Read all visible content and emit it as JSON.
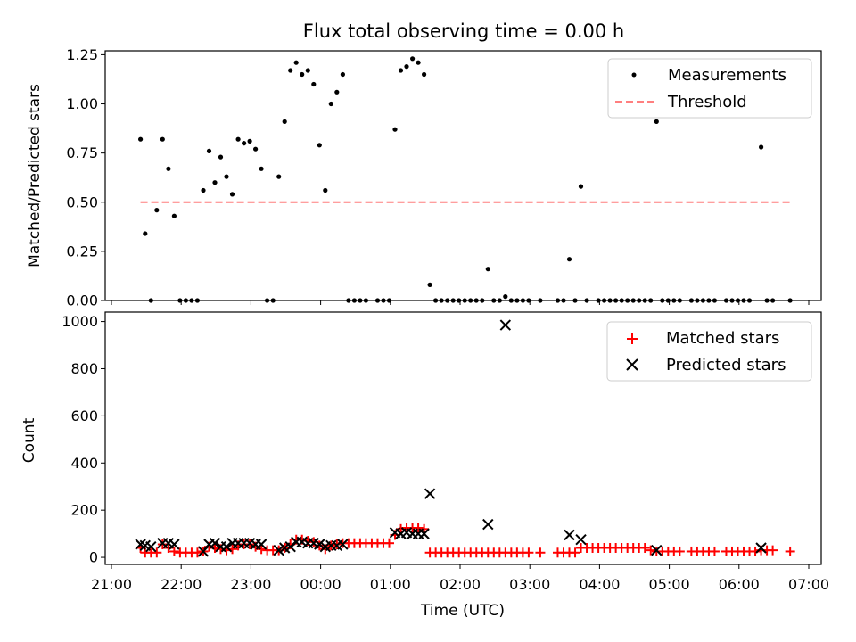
{
  "chart_data": [
    {
      "type": "scatter",
      "title": "Flux total observing time = 0.00 h",
      "xlabel": "",
      "ylabel": "Matched/Predicted stars",
      "xlim": [
        "2023-01-01T21:00",
        "2023-01-02T07:00"
      ],
      "ylim": [
        0,
        1.27
      ],
      "yticks": [
        "0.00",
        "0.25",
        "0.50",
        "0.75",
        "1.00",
        "1.25"
      ],
      "legend_position": "top-right",
      "series": [
        {
          "name": "Measurements",
          "marker": "dot",
          "color": "#000000",
          "points": [
            [
              "21:25",
              0.82
            ],
            [
              "21:29",
              0.34
            ],
            [
              "21:34",
              0.0
            ],
            [
              "21:39",
              0.46
            ],
            [
              "21:44",
              0.82
            ],
            [
              "21:49",
              0.67
            ],
            [
              "21:54",
              0.43
            ],
            [
              "21:59",
              0.0
            ],
            [
              "22:04",
              0.0
            ],
            [
              "22:09",
              0.0
            ],
            [
              "22:14",
              0.0
            ],
            [
              "22:19",
              0.56
            ],
            [
              "22:24",
              0.76
            ],
            [
              "22:29",
              0.6
            ],
            [
              "22:34",
              0.73
            ],
            [
              "22:39",
              0.63
            ],
            [
              "22:44",
              0.54
            ],
            [
              "22:49",
              0.82
            ],
            [
              "22:54",
              0.8
            ],
            [
              "22:59",
              0.81
            ],
            [
              "23:04",
              0.77
            ],
            [
              "23:09",
              0.67
            ],
            [
              "23:14",
              0.0
            ],
            [
              "23:19",
              0.0
            ],
            [
              "23:24",
              0.63
            ],
            [
              "23:29",
              0.91
            ],
            [
              "23:34",
              1.17
            ],
            [
              "23:39",
              1.21
            ],
            [
              "23:44",
              1.15
            ],
            [
              "23:49",
              1.17
            ],
            [
              "23:54",
              1.1
            ],
            [
              "23:59",
              0.79
            ],
            [
              "00:04",
              0.56
            ],
            [
              "00:09",
              1.0
            ],
            [
              "00:14",
              1.06
            ],
            [
              "00:19",
              1.15
            ],
            [
              "00:24",
              0.0
            ],
            [
              "00:29",
              0.0
            ],
            [
              "00:34",
              0.0
            ],
            [
              "00:39",
              0.0
            ],
            [
              "00:49",
              0.0
            ],
            [
              "00:54",
              0.0
            ],
            [
              "00:59",
              0.0
            ],
            [
              "01:04",
              0.87
            ],
            [
              "01:09",
              1.17
            ],
            [
              "01:14",
              1.19
            ],
            [
              "01:19",
              1.23
            ],
            [
              "01:24",
              1.21
            ],
            [
              "01:29",
              1.15
            ],
            [
              "01:34",
              0.08
            ],
            [
              "01:39",
              0.0
            ],
            [
              "01:44",
              0.0
            ],
            [
              "01:49",
              0.0
            ],
            [
              "01:54",
              0.0
            ],
            [
              "01:59",
              0.0
            ],
            [
              "02:04",
              0.0
            ],
            [
              "02:09",
              0.0
            ],
            [
              "02:14",
              0.0
            ],
            [
              "02:19",
              0.0
            ],
            [
              "02:24",
              0.16
            ],
            [
              "02:29",
              0.0
            ],
            [
              "02:34",
              0.0
            ],
            [
              "02:39",
              0.02
            ],
            [
              "02:44",
              0.0
            ],
            [
              "02:49",
              0.0
            ],
            [
              "02:54",
              0.0
            ],
            [
              "02:59",
              0.0
            ],
            [
              "03:09",
              0.0
            ],
            [
              "03:24",
              0.0
            ],
            [
              "03:29",
              0.0
            ],
            [
              "03:34",
              0.21
            ],
            [
              "03:39",
              0.0
            ],
            [
              "03:44",
              0.58
            ],
            [
              "03:49",
              0.0
            ],
            [
              "03:59",
              0.0
            ],
            [
              "04:04",
              0.0
            ],
            [
              "04:09",
              0.0
            ],
            [
              "04:14",
              0.0
            ],
            [
              "04:19",
              0.0
            ],
            [
              "04:24",
              0.0
            ],
            [
              "04:29",
              0.0
            ],
            [
              "04:34",
              0.0
            ],
            [
              "04:39",
              0.0
            ],
            [
              "04:44",
              0.0
            ],
            [
              "04:49",
              0.91
            ],
            [
              "04:54",
              0.0
            ],
            [
              "04:59",
              0.0
            ],
            [
              "05:04",
              0.0
            ],
            [
              "05:09",
              0.0
            ],
            [
              "05:19",
              0.0
            ],
            [
              "05:24",
              0.0
            ],
            [
              "05:29",
              0.0
            ],
            [
              "05:34",
              0.0
            ],
            [
              "05:39",
              0.0
            ],
            [
              "05:49",
              0.0
            ],
            [
              "05:54",
              0.0
            ],
            [
              "05:59",
              0.0
            ],
            [
              "06:04",
              0.0
            ],
            [
              "06:09",
              0.0
            ],
            [
              "06:19",
              0.78
            ],
            [
              "06:24",
              0.0
            ],
            [
              "06:29",
              0.0
            ],
            [
              "06:44",
              0.0
            ]
          ]
        },
        {
          "name": "Threshold",
          "marker": "dashed-line",
          "color": "#ff7f7f",
          "points": [
            [
              "21:25",
              0.5
            ],
            [
              "06:44",
              0.5
            ]
          ]
        }
      ]
    },
    {
      "type": "scatter",
      "title": "",
      "xlabel": "Time (UTC)",
      "ylabel": "Count",
      "xlim": [
        "2023-01-01T21:00",
        "2023-01-02T07:00"
      ],
      "ylim": [
        -30,
        1040
      ],
      "xticks": [
        "21:00",
        "22:00",
        "23:00",
        "00:00",
        "01:00",
        "02:00",
        "03:00",
        "04:00",
        "05:00",
        "06:00",
        "07:00"
      ],
      "yticks": [
        "0",
        "200",
        "400",
        "600",
        "800",
        "1000"
      ],
      "legend_position": "top-right",
      "series": [
        {
          "name": "Matched stars",
          "marker": "plus",
          "color": "#ff0000",
          "points": [
            [
              "21:25",
              40
            ],
            [
              "21:29",
              20
            ],
            [
              "21:34",
              20
            ],
            [
              "21:39",
              20
            ],
            [
              "21:44",
              55
            ],
            [
              "21:49",
              40
            ],
            [
              "21:54",
              25
            ],
            [
              "21:59",
              20
            ],
            [
              "22:04",
              20
            ],
            [
              "22:09",
              20
            ],
            [
              "22:14",
              20
            ],
            [
              "22:19",
              25
            ],
            [
              "22:24",
              45
            ],
            [
              "22:29",
              40
            ],
            [
              "22:34",
              35
            ],
            [
              "22:39",
              30
            ],
            [
              "22:44",
              35
            ],
            [
              "22:49",
              50
            ],
            [
              "22:54",
              55
            ],
            [
              "22:59",
              55
            ],
            [
              "23:04",
              45
            ],
            [
              "23:09",
              35
            ],
            [
              "23:14",
              30
            ],
            [
              "23:19",
              30
            ],
            [
              "23:24",
              30
            ],
            [
              "23:29",
              40
            ],
            [
              "23:34",
              55
            ],
            [
              "23:39",
              75
            ],
            [
              "23:44",
              75
            ],
            [
              "23:49",
              70
            ],
            [
              "23:54",
              65
            ],
            [
              "23:59",
              50
            ],
            [
              "00:04",
              35
            ],
            [
              "00:09",
              50
            ],
            [
              "00:14",
              55
            ],
            [
              "00:19",
              60
            ],
            [
              "00:24",
              60
            ],
            [
              "00:29",
              60
            ],
            [
              "00:34",
              60
            ],
            [
              "00:39",
              60
            ],
            [
              "00:44",
              60
            ],
            [
              "00:49",
              60
            ],
            [
              "00:54",
              60
            ],
            [
              "00:59",
              60
            ],
            [
              "01:04",
              95
            ],
            [
              "01:09",
              120
            ],
            [
              "01:14",
              125
            ],
            [
              "01:19",
              125
            ],
            [
              "01:24",
              125
            ],
            [
              "01:29",
              120
            ],
            [
              "01:34",
              20
            ],
            [
              "01:39",
              20
            ],
            [
              "01:44",
              20
            ],
            [
              "01:49",
              20
            ],
            [
              "01:54",
              20
            ],
            [
              "01:59",
              20
            ],
            [
              "02:04",
              20
            ],
            [
              "02:09",
              20
            ],
            [
              "02:14",
              20
            ],
            [
              "02:19",
              20
            ],
            [
              "02:24",
              20
            ],
            [
              "02:29",
              20
            ],
            [
              "02:34",
              20
            ],
            [
              "02:39",
              20
            ],
            [
              "02:44",
              20
            ],
            [
              "02:49",
              20
            ],
            [
              "02:54",
              20
            ],
            [
              "02:59",
              20
            ],
            [
              "03:09",
              20
            ],
            [
              "03:24",
              20
            ],
            [
              "03:29",
              20
            ],
            [
              "03:34",
              20
            ],
            [
              "03:39",
              20
            ],
            [
              "03:44",
              40
            ],
            [
              "03:49",
              40
            ],
            [
              "03:54",
              40
            ],
            [
              "03:59",
              40
            ],
            [
              "04:04",
              40
            ],
            [
              "04:09",
              40
            ],
            [
              "04:14",
              40
            ],
            [
              "04:19",
              40
            ],
            [
              "04:24",
              40
            ],
            [
              "04:29",
              40
            ],
            [
              "04:34",
              40
            ],
            [
              "04:39",
              40
            ],
            [
              "04:44",
              30
            ],
            [
              "04:49",
              25
            ],
            [
              "04:54",
              25
            ],
            [
              "04:59",
              25
            ],
            [
              "05:04",
              25
            ],
            [
              "05:09",
              25
            ],
            [
              "05:19",
              25
            ],
            [
              "05:24",
              25
            ],
            [
              "05:29",
              25
            ],
            [
              "05:34",
              25
            ],
            [
              "05:39",
              25
            ],
            [
              "05:49",
              25
            ],
            [
              "05:54",
              25
            ],
            [
              "05:59",
              25
            ],
            [
              "06:04",
              25
            ],
            [
              "06:09",
              25
            ],
            [
              "06:14",
              25
            ],
            [
              "06:19",
              30
            ],
            [
              "06:24",
              30
            ],
            [
              "06:29",
              30
            ],
            [
              "06:44",
              25
            ]
          ]
        },
        {
          "name": "Predicted stars",
          "marker": "x",
          "color": "#000000",
          "points": [
            [
              "21:25",
              55
            ],
            [
              "21:29",
              50
            ],
            [
              "21:34",
              45
            ],
            [
              "21:44",
              60
            ],
            [
              "21:49",
              60
            ],
            [
              "21:54",
              55
            ],
            [
              "22:19",
              25
            ],
            [
              "22:24",
              55
            ],
            [
              "22:29",
              60
            ],
            [
              "22:34",
              45
            ],
            [
              "22:39",
              45
            ],
            [
              "22:44",
              60
            ],
            [
              "22:49",
              60
            ],
            [
              "22:54",
              60
            ],
            [
              "22:59",
              60
            ],
            [
              "23:04",
              55
            ],
            [
              "23:09",
              55
            ],
            [
              "23:24",
              30
            ],
            [
              "23:29",
              40
            ],
            [
              "23:34",
              45
            ],
            [
              "23:39",
              65
            ],
            [
              "23:44",
              65
            ],
            [
              "23:49",
              60
            ],
            [
              "23:54",
              60
            ],
            [
              "23:59",
              55
            ],
            [
              "00:04",
              45
            ],
            [
              "00:09",
              50
            ],
            [
              "00:14",
              50
            ],
            [
              "00:19",
              55
            ],
            [
              "01:04",
              105
            ],
            [
              "01:09",
              100
            ],
            [
              "01:14",
              105
            ],
            [
              "01:19",
              100
            ],
            [
              "01:24",
              100
            ],
            [
              "01:29",
              100
            ],
            [
              "01:34",
              270
            ],
            [
              "02:24",
              140
            ],
            [
              "02:39",
              985
            ],
            [
              "03:34",
              95
            ],
            [
              "03:44",
              75
            ],
            [
              "04:49",
              30
            ],
            [
              "06:19",
              40
            ]
          ]
        }
      ]
    }
  ]
}
